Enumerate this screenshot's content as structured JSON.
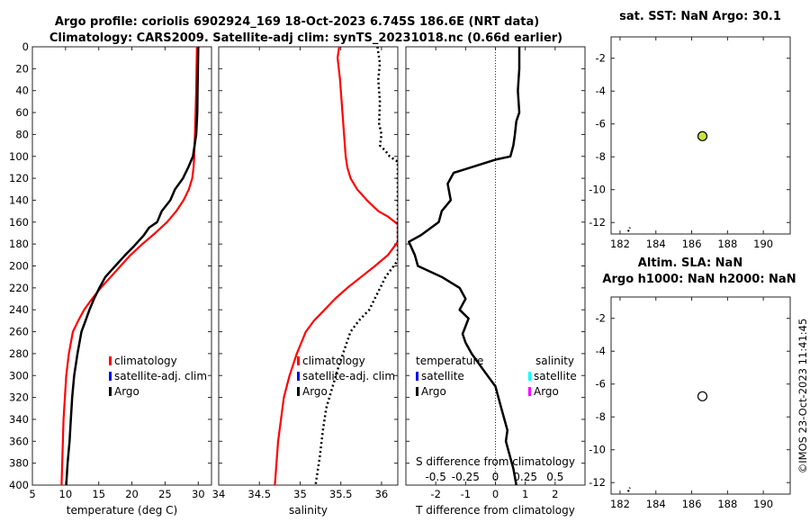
{
  "titles": {
    "line1": "Argo profile: coriolis 6902924_169 18-Oct-2023 6.745S 186.6E (NRT data)",
    "line2": "Climatology: CARS2009. Satellite-adj clim: synTS_20231018.nc (0.66d earlier)",
    "sst_title": "sat. SST: NaN Argo: 30.1",
    "sla_title1": "Altim. SLA: NaN",
    "sla_title2": "Argo h1000: NaN h2000: NaN",
    "timestamp": "©IMOS 23-Oct-2023 11:41:45"
  },
  "colors": {
    "climatology": "#ff0000",
    "satellite": "#0000ff",
    "argo": "#000000",
    "sat_temp_diff": "#ffff00",
    "sat_sal_diff": "#00ffff",
    "argo_sal_diff": "#ff00ff",
    "sst_marker": "#c6e33c"
  },
  "chart_data": [
    {
      "type": "line",
      "id": "temperature",
      "xlabel": "temperature (deg C)",
      "ylabel": "",
      "xlim": [
        5,
        32
      ],
      "ylim": [
        400,
        0
      ],
      "xticks": [
        5,
        10,
        15,
        20,
        25,
        30
      ],
      "yticks": [
        0,
        20,
        40,
        60,
        80,
        100,
        120,
        140,
        160,
        180,
        200,
        220,
        240,
        260,
        280,
        300,
        320,
        340,
        360,
        380,
        400
      ],
      "legend": [
        {
          "label": "climatology",
          "color_key": "climatology"
        },
        {
          "label": "satellite-adj. clim",
          "color_key": "satellite"
        },
        {
          "label": "Argo",
          "color_key": "argo"
        }
      ],
      "series": [
        {
          "name": "climatology",
          "color_key": "climatology",
          "width": 2.2,
          "dash": "",
          "x": [
            29.8,
            29.75,
            29.7,
            29.6,
            29.5,
            29.45,
            29.4,
            29.3,
            29.1,
            28.6,
            27.8,
            26.7,
            25.3,
            23.5,
            21.6,
            19.8,
            18.3,
            16.8,
            15.3,
            14.0,
            12.8,
            11.9,
            11.1,
            10.5,
            10.1,
            9.7,
            9.4
          ],
          "y": [
            0,
            20,
            40,
            60,
            80,
            90,
            100,
            110,
            120,
            130,
            140,
            150,
            160,
            170,
            180,
            190,
            200,
            210,
            220,
            230,
            240,
            250,
            260,
            280,
            300,
            340,
            400
          ]
        },
        {
          "name": "Argo",
          "color_key": "argo",
          "width": 2.5,
          "dash": "",
          "x": [
            30.0,
            29.95,
            29.9,
            29.85,
            29.7,
            29.2,
            28.5,
            27.7,
            26.5,
            25.8,
            24.5,
            23.8,
            22.6,
            21.8,
            20.3,
            19.0,
            17.5,
            16.0,
            15.1,
            14.3,
            13.6,
            13.0,
            12.4,
            11.8,
            11.3,
            11.0,
            10.8,
            10.6,
            10.3,
            10.1
          ],
          "y": [
            0,
            20,
            40,
            60,
            80,
            100,
            110,
            120,
            130,
            140,
            150,
            160,
            165,
            172,
            182,
            190,
            200,
            210,
            220,
            230,
            240,
            250,
            260,
            280,
            300,
            320,
            340,
            360,
            380,
            400
          ]
        }
      ]
    },
    {
      "type": "line",
      "id": "salinity",
      "xlabel": "salinity",
      "ylabel": "",
      "xlim": [
        34,
        36.2
      ],
      "ylim": [
        400,
        0
      ],
      "xticks": [
        34,
        34.5,
        35,
        35.5,
        36
      ],
      "tick_labels": [
        "34",
        "34.5",
        "35",
        "35.5",
        "36"
      ],
      "legend": [
        {
          "label": "climatology",
          "color_key": "climatology"
        },
        {
          "label": "satellite-adj. clim",
          "color_key": "satellite"
        },
        {
          "label": "Argo",
          "color_key": "argo"
        }
      ],
      "series": [
        {
          "name": "climatology",
          "color_key": "climatology",
          "width": 2.2,
          "dash": "",
          "x": [
            35.48,
            35.46,
            35.49,
            35.52,
            35.54,
            35.56,
            35.58,
            35.62,
            35.7,
            35.82,
            35.96,
            36.08,
            36.2,
            36.2,
            36.08,
            35.92,
            35.75,
            35.58,
            35.43,
            35.3,
            35.17,
            35.07,
            34.96,
            34.87,
            34.8,
            34.73,
            34.69
          ],
          "y": [
            0,
            10,
            30,
            60,
            80,
            100,
            110,
            120,
            130,
            140,
            150,
            155,
            162,
            178,
            190,
            200,
            210,
            220,
            230,
            240,
            250,
            260,
            280,
            300,
            320,
            360,
            400
          ]
        },
        {
          "name": "Argo",
          "color_key": "argo",
          "width": 2.5,
          "dash": "2,3",
          "x": [
            35.95,
            35.98,
            35.96,
            35.98,
            35.97,
            36.0,
            35.98,
            36.05,
            36.1,
            36.2,
            36.2,
            36.15,
            36.05,
            35.95,
            35.85,
            35.72,
            35.62,
            35.55,
            35.48,
            35.4,
            35.32,
            35.28,
            35.24,
            35.19
          ],
          "y": [
            0,
            15,
            30,
            50,
            70,
            80,
            90,
            95,
            100,
            105,
            195,
            200,
            210,
            225,
            240,
            250,
            260,
            275,
            290,
            310,
            330,
            350,
            375,
            400
          ]
        }
      ]
    },
    {
      "type": "line",
      "id": "difference",
      "xlabel": "T difference from climatology",
      "top_label": "S difference from climatology",
      "ylabel": "",
      "xlim": [
        -3,
        3
      ],
      "ylim": [
        400,
        0
      ],
      "xticks": [
        -2,
        -1,
        0,
        1,
        2
      ],
      "tick_labels": [
        "-2",
        "-1",
        "0",
        "1",
        "2"
      ],
      "s_ticks": [
        "-0.5",
        "-0.25",
        "0",
        "0.25",
        "0.5"
      ],
      "legend_temperature": {
        "heading": "temperature",
        "items": [
          {
            "label": "satellite",
            "color_key": "satellite"
          },
          {
            "label": "Argo",
            "color_key": "argo"
          }
        ]
      },
      "legend_salinity": {
        "heading": "salinity",
        "items": [
          {
            "label": "satellite",
            "color_key": "sat_sal_diff"
          },
          {
            "label": "Argo",
            "color_key": "argo_sal_diff"
          }
        ]
      },
      "series": [
        {
          "name": "Argo T difference",
          "color_key": "argo",
          "width": 2.5,
          "dash": "",
          "x": [
            0.8,
            0.8,
            0.75,
            0.8,
            0.7,
            0.65,
            0.6,
            0.5,
            0.0,
            -1.4,
            -1.6,
            -1.5,
            -1.8,
            -1.9,
            -2.5,
            -2.9,
            -2.7,
            -2.6,
            -1.8,
            -1.2,
            -1.0,
            -1.2,
            -0.9,
            -1.0,
            -1.1,
            -1.0,
            -0.8,
            -0.4,
            0.0,
            0.2,
            0.4,
            0.35,
            0.45,
            0.6,
            0.7
          ],
          "y": [
            0,
            20,
            40,
            60,
            68,
            80,
            90,
            100,
            103,
            115,
            125,
            140,
            150,
            160,
            172,
            178,
            190,
            200,
            210,
            220,
            230,
            240,
            248,
            255,
            262,
            270,
            280,
            295,
            310,
            330,
            350,
            360,
            370,
            385,
            400
          ]
        }
      ]
    },
    {
      "type": "scatter",
      "id": "sst_map",
      "title": "sat. SST: NaN Argo: 30.1",
      "xlim": [
        181.5,
        191.5
      ],
      "ylim": [
        -12.7,
        -0.7
      ],
      "xticks": [
        182,
        184,
        186,
        188,
        190
      ],
      "yticks": [
        -2,
        -4,
        -6,
        -8,
        -10,
        -12
      ],
      "points": [
        {
          "x": 186.6,
          "y": -6.745,
          "label": "Argo"
        }
      ],
      "coast": [
        {
          "x": 182.45,
          "y": -12.55
        },
        {
          "x": 182.55,
          "y": -12.3
        }
      ]
    },
    {
      "type": "scatter",
      "id": "sla_map",
      "title": "Altim. SLA: NaN",
      "xlim": [
        181.5,
        191.5
      ],
      "ylim": [
        -12.7,
        -0.7
      ],
      "xticks": [
        182,
        184,
        186,
        188,
        190
      ],
      "yticks": [
        -2,
        -4,
        -6,
        -8,
        -10,
        -12
      ],
      "points": [
        {
          "x": 186.6,
          "y": -6.745,
          "label": "Argo"
        }
      ],
      "coast": [
        {
          "x": 182.45,
          "y": -12.55
        },
        {
          "x": 182.55,
          "y": -12.3
        }
      ]
    }
  ]
}
